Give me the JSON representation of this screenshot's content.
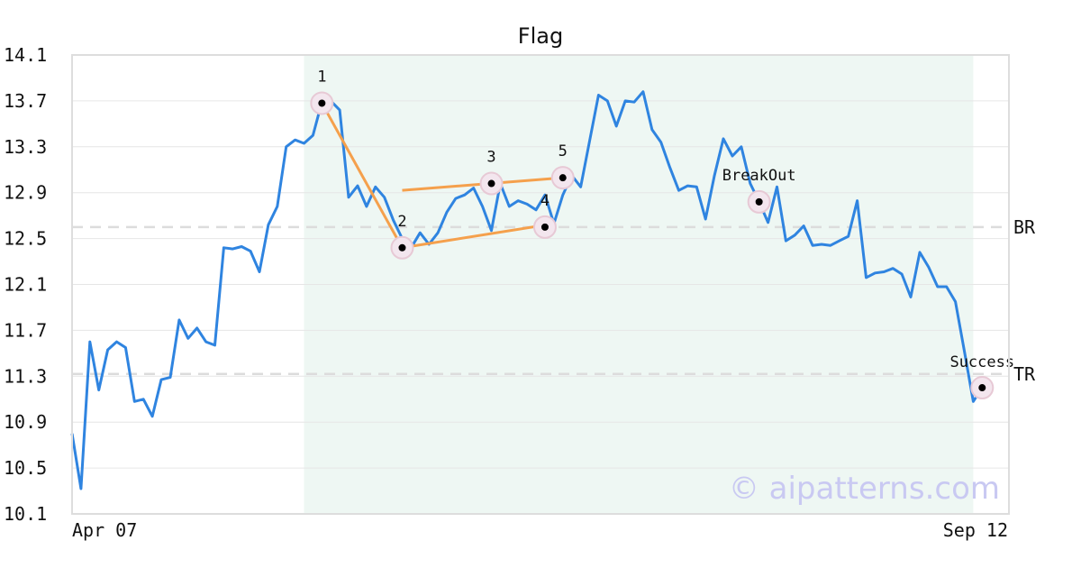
{
  "chart_data": {
    "type": "line",
    "title": "Flag",
    "watermark": "© aipatterns.com",
    "ylim": [
      10.1,
      14.1
    ],
    "y_ticks": [
      "14.1",
      "13.7",
      "13.3",
      "12.9",
      "12.5",
      "12.1",
      "11.7",
      "11.3",
      "10.9",
      "10.5",
      "10.1"
    ],
    "x_ticks": [
      {
        "index": 0,
        "label": "Apr 07"
      },
      {
        "index": 105,
        "label": "Sep 12"
      }
    ],
    "values": [
      10.8,
      10.32,
      11.6,
      11.18,
      11.53,
      11.6,
      11.55,
      11.08,
      11.1,
      10.95,
      11.27,
      11.29,
      11.79,
      11.63,
      11.72,
      11.6,
      11.57,
      12.42,
      12.41,
      12.43,
      12.39,
      12.21,
      12.62,
      12.78,
      13.3,
      13.36,
      13.33,
      13.4,
      13.69,
      13.7,
      13.62,
      12.86,
      12.96,
      12.78,
      12.95,
      12.86,
      12.66,
      12.5,
      12.42,
      12.55,
      12.45,
      12.55,
      12.73,
      12.85,
      12.88,
      12.94,
      12.78,
      12.57,
      12.98,
      12.78,
      12.83,
      12.8,
      12.75,
      12.88,
      12.63,
      12.88,
      13.05,
      12.95,
      13.35,
      13.75,
      13.7,
      13.48,
      13.7,
      13.69,
      13.78,
      13.45,
      13.34,
      13.12,
      12.92,
      12.96,
      12.95,
      12.67,
      13.05,
      13.37,
      13.22,
      13.3,
      12.98,
      12.82,
      12.64,
      12.95,
      12.48,
      12.53,
      12.61,
      12.44,
      12.45,
      12.44,
      12.48,
      12.52,
      12.83,
      12.16,
      12.2,
      12.21,
      12.24,
      12.19,
      11.99,
      12.38,
      12.25,
      12.08,
      12.08,
      11.95,
      11.52,
      11.08,
      11.2,
      11.2
    ],
    "series_color": "#2f84e0",
    "pattern_lines": [
      {
        "from": 1,
        "to": 2
      },
      {
        "from": 2,
        "to": 4
      },
      {
        "from": "flag_top_start",
        "to": 5
      }
    ],
    "pattern_color": "#f5a04c",
    "flag_top_start": {
      "index": 37,
      "value": 12.92
    },
    "flag_bottom_end": {
      "index": 54,
      "value": 12.63
    },
    "highlight_region": {
      "start_index": 26,
      "end_index": 101
    },
    "highlight_color": "#eef7f3",
    "levels": [
      {
        "label": "BR",
        "value": 12.6
      },
      {
        "label": "TR",
        "value": 11.32
      }
    ],
    "points": [
      {
        "label": "1",
        "index": 28,
        "value": 13.68
      },
      {
        "label": "2",
        "index": 37,
        "value": 12.42
      },
      {
        "label": "3",
        "index": 47,
        "value": 12.98
      },
      {
        "label": "4",
        "index": 53,
        "value": 12.6
      },
      {
        "label": "5",
        "index": 55,
        "value": 13.03
      },
      {
        "label": "BreakOut",
        "index": 77,
        "value": 12.82
      },
      {
        "label": "Success",
        "index": 102,
        "value": 11.2
      }
    ]
  }
}
